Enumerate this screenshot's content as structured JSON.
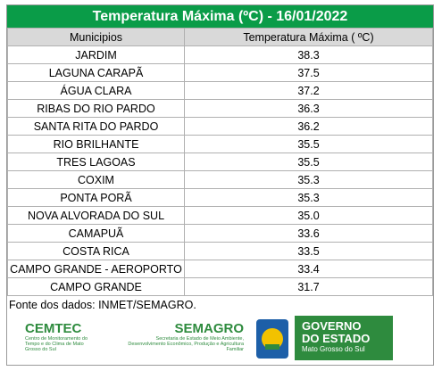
{
  "header": {
    "title": "Temperatura Máxima (ºC) - 16/01/2022"
  },
  "table": {
    "columns": [
      "Municipios",
      "Temperatura Máxima ( ºC)"
    ],
    "rows": [
      [
        "JARDIM",
        "38.3"
      ],
      [
        "LAGUNA CARAPÃ",
        "37.5"
      ],
      [
        "ÁGUA CLARA",
        "37.2"
      ],
      [
        "RIBAS DO RIO PARDO",
        "36.3"
      ],
      [
        "SANTA RITA DO PARDO",
        "36.2"
      ],
      [
        "RIO BRILHANTE",
        "35.5"
      ],
      [
        "TRES LAGOAS",
        "35.5"
      ],
      [
        "COXIM",
        "35.3"
      ],
      [
        "PONTA PORÃ",
        "35.3"
      ],
      [
        "NOVA ALVORADA DO SUL",
        "35.0"
      ],
      [
        "CAMAPUÃ",
        "33.6"
      ],
      [
        "COSTA RICA",
        "33.5"
      ],
      [
        "CAMPO GRANDE - AEROPORTO",
        "33.4"
      ],
      [
        "CAMPO GRANDE",
        "31.7"
      ]
    ]
  },
  "source": "Fonte dos dados: INMET/SEMAGRO.",
  "logos": {
    "cemtec": {
      "name": "CEMTEC",
      "subtitle": "Centro de Monitoramento do Tempo e do Clima de Mato Grosso do Sul"
    },
    "semagro": {
      "name": "SEMAGRO",
      "subtitle": "Secretaria de Estado de Meio Ambiente, Desenvolvimento Econômico, Produção e Agricultura Familiar"
    },
    "governo": {
      "line1": "GOVERNO",
      "line2": "DO ESTADO",
      "line3": "Mato Grosso do Sul"
    }
  }
}
